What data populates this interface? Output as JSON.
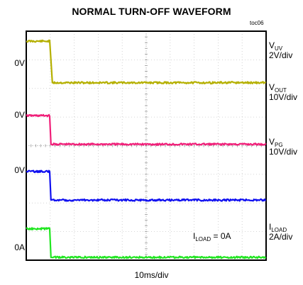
{
  "chart_data": {
    "type": "line",
    "title": "NORMAL TURN-OFF WAVEFORM",
    "tag": "toc06",
    "x_label": "10ms/div",
    "divisions": {
      "x": 10,
      "y": 8
    },
    "turn_off_time_div": 1.0,
    "series": [
      {
        "name": "V",
        "sub": "UV",
        "scale": "2V/div",
        "zero_label": "0V",
        "color": "#b5b000",
        "zero_div": 2.0,
        "high_div": 0.35,
        "low_div": 1.8
      },
      {
        "name": "V",
        "sub": "OUT",
        "scale": "10V/div",
        "zero_label": "0V",
        "color": "#f01e78",
        "zero_div": 3.95,
        "high_div": 2.95,
        "low_div": 3.95
      },
      {
        "name": "V",
        "sub": "PG",
        "scale": "10V/div",
        "zero_label": "0V",
        "color": "#1010f0",
        "zero_div": 5.9,
        "high_div": 4.9,
        "low_div": 5.9
      },
      {
        "name": "I",
        "sub": "LOAD",
        "scale": "2A/div",
        "zero_label": "0A",
        "color": "#20e620",
        "zero_div": 7.9,
        "high_div": 6.9,
        "low_div": 7.9
      }
    ],
    "annotation": {
      "name": "I",
      "sub": "LOAD",
      "text": " = 0A"
    }
  }
}
